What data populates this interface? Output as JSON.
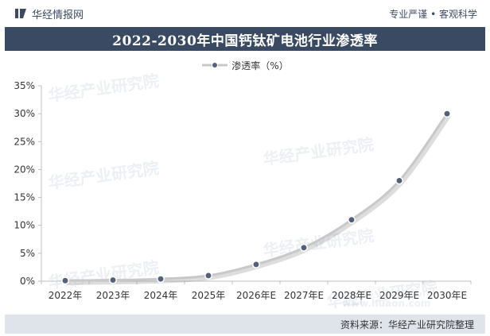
{
  "header": {
    "brand": "华经情报网",
    "slogan": "专业严谨 • 客观科学",
    "title": "2022-2030年中国钙钛矿电池行业渗透率"
  },
  "footer": {
    "source": "资料来源：华经产业研究院整理"
  },
  "watermarks": [
    "华经产业研究院",
    "华经产业研究院",
    "华经产业研究院",
    "华经产业研究院",
    "华经产业研究院",
    "华经产业研究院",
    "www.huaon.com"
  ],
  "colors": {
    "title_bg": "#3b4a63",
    "line": "#c8c8c8",
    "marker": "#54607a",
    "footer_bg": "#dfe3ea"
  },
  "chart_data": {
    "type": "line",
    "title": "2022-2030年中国钙钛矿电池行业渗透率",
    "categories": [
      "2022年",
      "2023年",
      "2024年",
      "2025年",
      "2026年E",
      "2027年E",
      "2028年E",
      "2029年E",
      "2030年E"
    ],
    "series": [
      {
        "name": "渗透率（%）",
        "values": [
          0.1,
          0.2,
          0.4,
          1,
          3,
          6,
          11,
          18,
          30
        ]
      }
    ],
    "ylim": [
      0,
      35
    ],
    "yticks": [
      "0%",
      "5%",
      "10%",
      "15%",
      "20%",
      "25%",
      "30%",
      "35%"
    ],
    "xlabel": "",
    "ylabel": "",
    "grid": false,
    "legend": "top-center"
  }
}
